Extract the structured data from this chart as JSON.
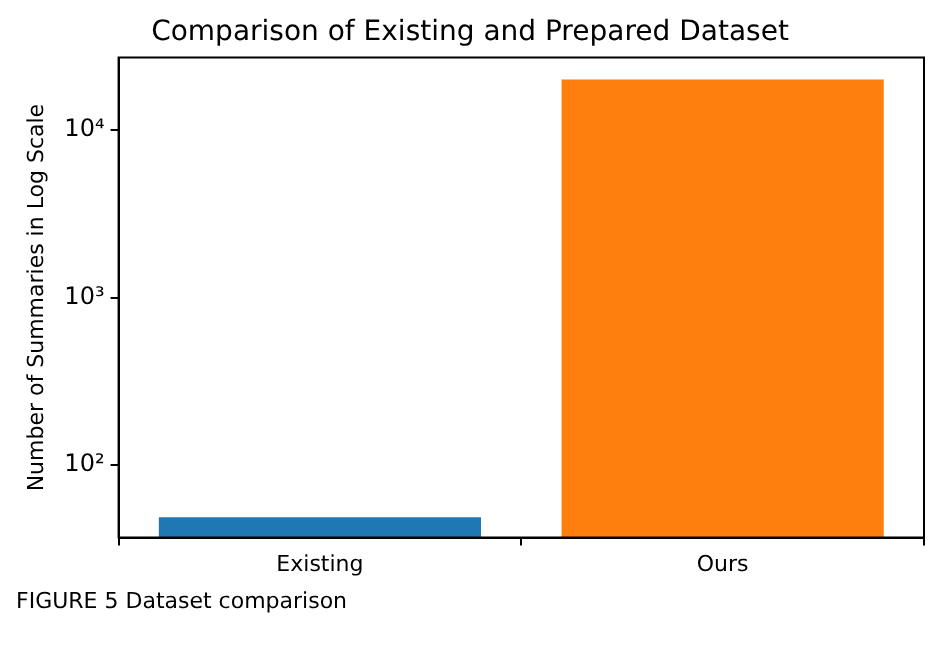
{
  "chart_data": {
    "type": "bar",
    "title": "Comparison of Existing and Prepared Dataset",
    "ylabel": "Number of Summaries in Log Scale",
    "categories": [
      "Existing",
      "Ours"
    ],
    "values": [
      49,
      20000
    ],
    "colors": [
      "#1f77b4",
      "#ff7f0e"
    ],
    "log": true,
    "ylim": [
      37,
      27000
    ],
    "yticks": [
      {
        "value": 100,
        "label": "10²"
      },
      {
        "value": 1000,
        "label": "10³"
      },
      {
        "value": 10000,
        "label": "10⁴"
      }
    ],
    "grid": false,
    "legend": false,
    "annotations": [
      "FIGURE 5 Dataset comparison"
    ]
  }
}
